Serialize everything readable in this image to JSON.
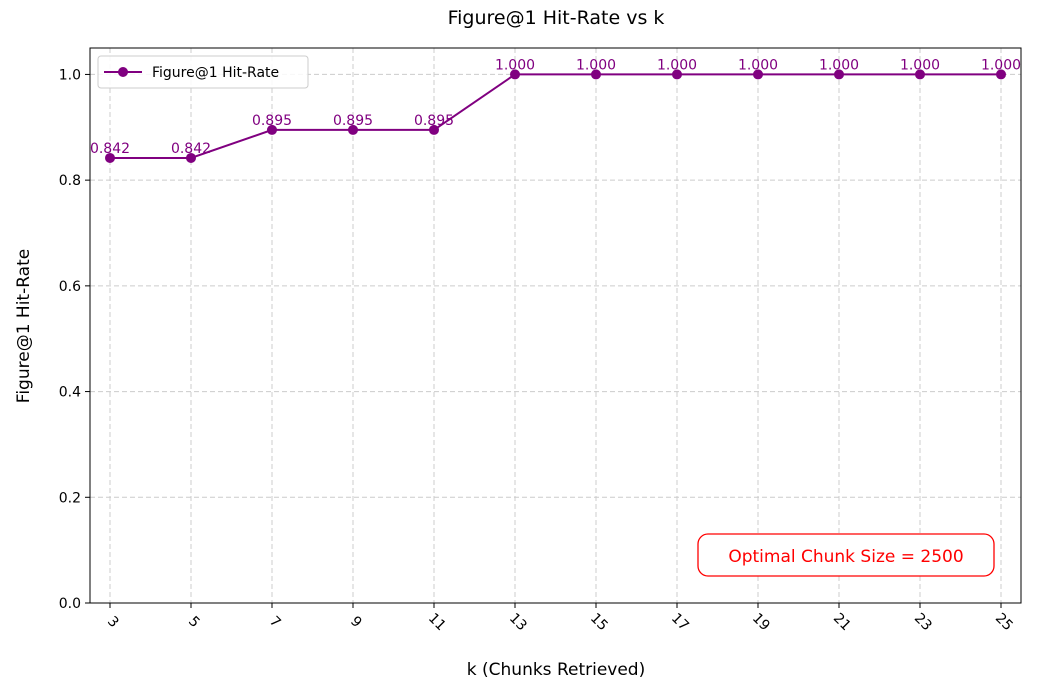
{
  "chart_data": {
    "type": "line",
    "title": "Figure@1 Hit-Rate vs k",
    "xlabel": "k (Chunks Retrieved)",
    "ylabel": "Figure@1 Hit-Rate",
    "x": [
      3,
      5,
      7,
      9,
      11,
      13,
      15,
      17,
      19,
      21,
      23,
      25
    ],
    "series": [
      {
        "name": "Figure@1 Hit-Rate",
        "values": [
          0.842,
          0.842,
          0.895,
          0.895,
          0.895,
          1.0,
          1.0,
          1.0,
          1.0,
          1.0,
          1.0,
          1.0
        ],
        "labels": [
          "0.842",
          "0.842",
          "0.895",
          "0.895",
          "0.895",
          "1.000",
          "1.000",
          "1.000",
          "1.000",
          "1.000",
          "1.000",
          "1.000"
        ],
        "color": "#800080",
        "marker": "circle"
      }
    ],
    "ylim": [
      0,
      1.05
    ],
    "yticks": [
      "0.0",
      "0.2",
      "0.4",
      "0.6",
      "0.8",
      "1.0"
    ],
    "xticks": [
      "3",
      "5",
      "7",
      "9",
      "11",
      "13",
      "15",
      "17",
      "19",
      "21",
      "23",
      "25"
    ],
    "grid": true,
    "legend_position": "top-left",
    "annotation": {
      "text": "Optimal Chunk Size = 2500",
      "color": "#ff0000",
      "position": "bottom-right"
    }
  }
}
